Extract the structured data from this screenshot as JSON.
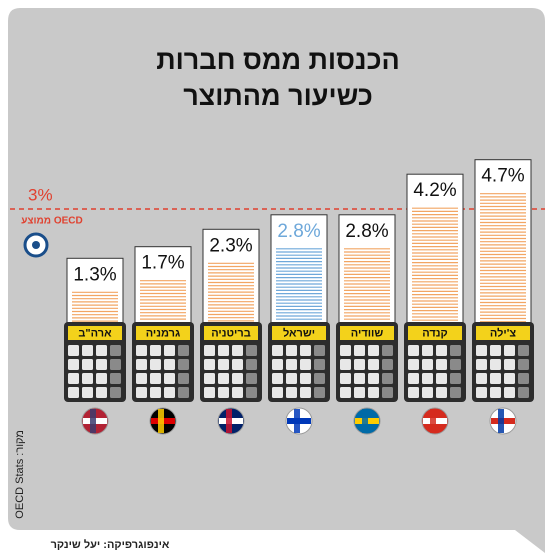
{
  "chart_data": {
    "type": "bar",
    "title": [
      "הכנסות ממס חברות",
      "כשיעור מהתוצר"
    ],
    "categories": [
      "ארה\"ב",
      "גרמניה",
      "בריטניה",
      "ישראל",
      "שוודיה",
      "קנדה",
      "צ'ילה"
    ],
    "values": [
      1.3,
      1.7,
      2.3,
      2.8,
      2.8,
      4.2,
      4.7
    ],
    "value_labels": [
      "1.3%",
      "1.7%",
      "2.3%",
      "2.8%",
      "2.8%",
      "4.2%",
      "4.7%"
    ],
    "colors": [
      "#f2a563",
      "#f2a563",
      "#f2a563",
      "#6ea8da",
      "#f2a563",
      "#f2a563",
      "#f2a563"
    ],
    "reference": {
      "value": 3,
      "label": "3%",
      "name": "ממוצע OECD",
      "color": "#e0412f"
    },
    "source": "מקור: OECD Stats",
    "credit": "אינפוגרפיקה: יעל שינקר"
  }
}
